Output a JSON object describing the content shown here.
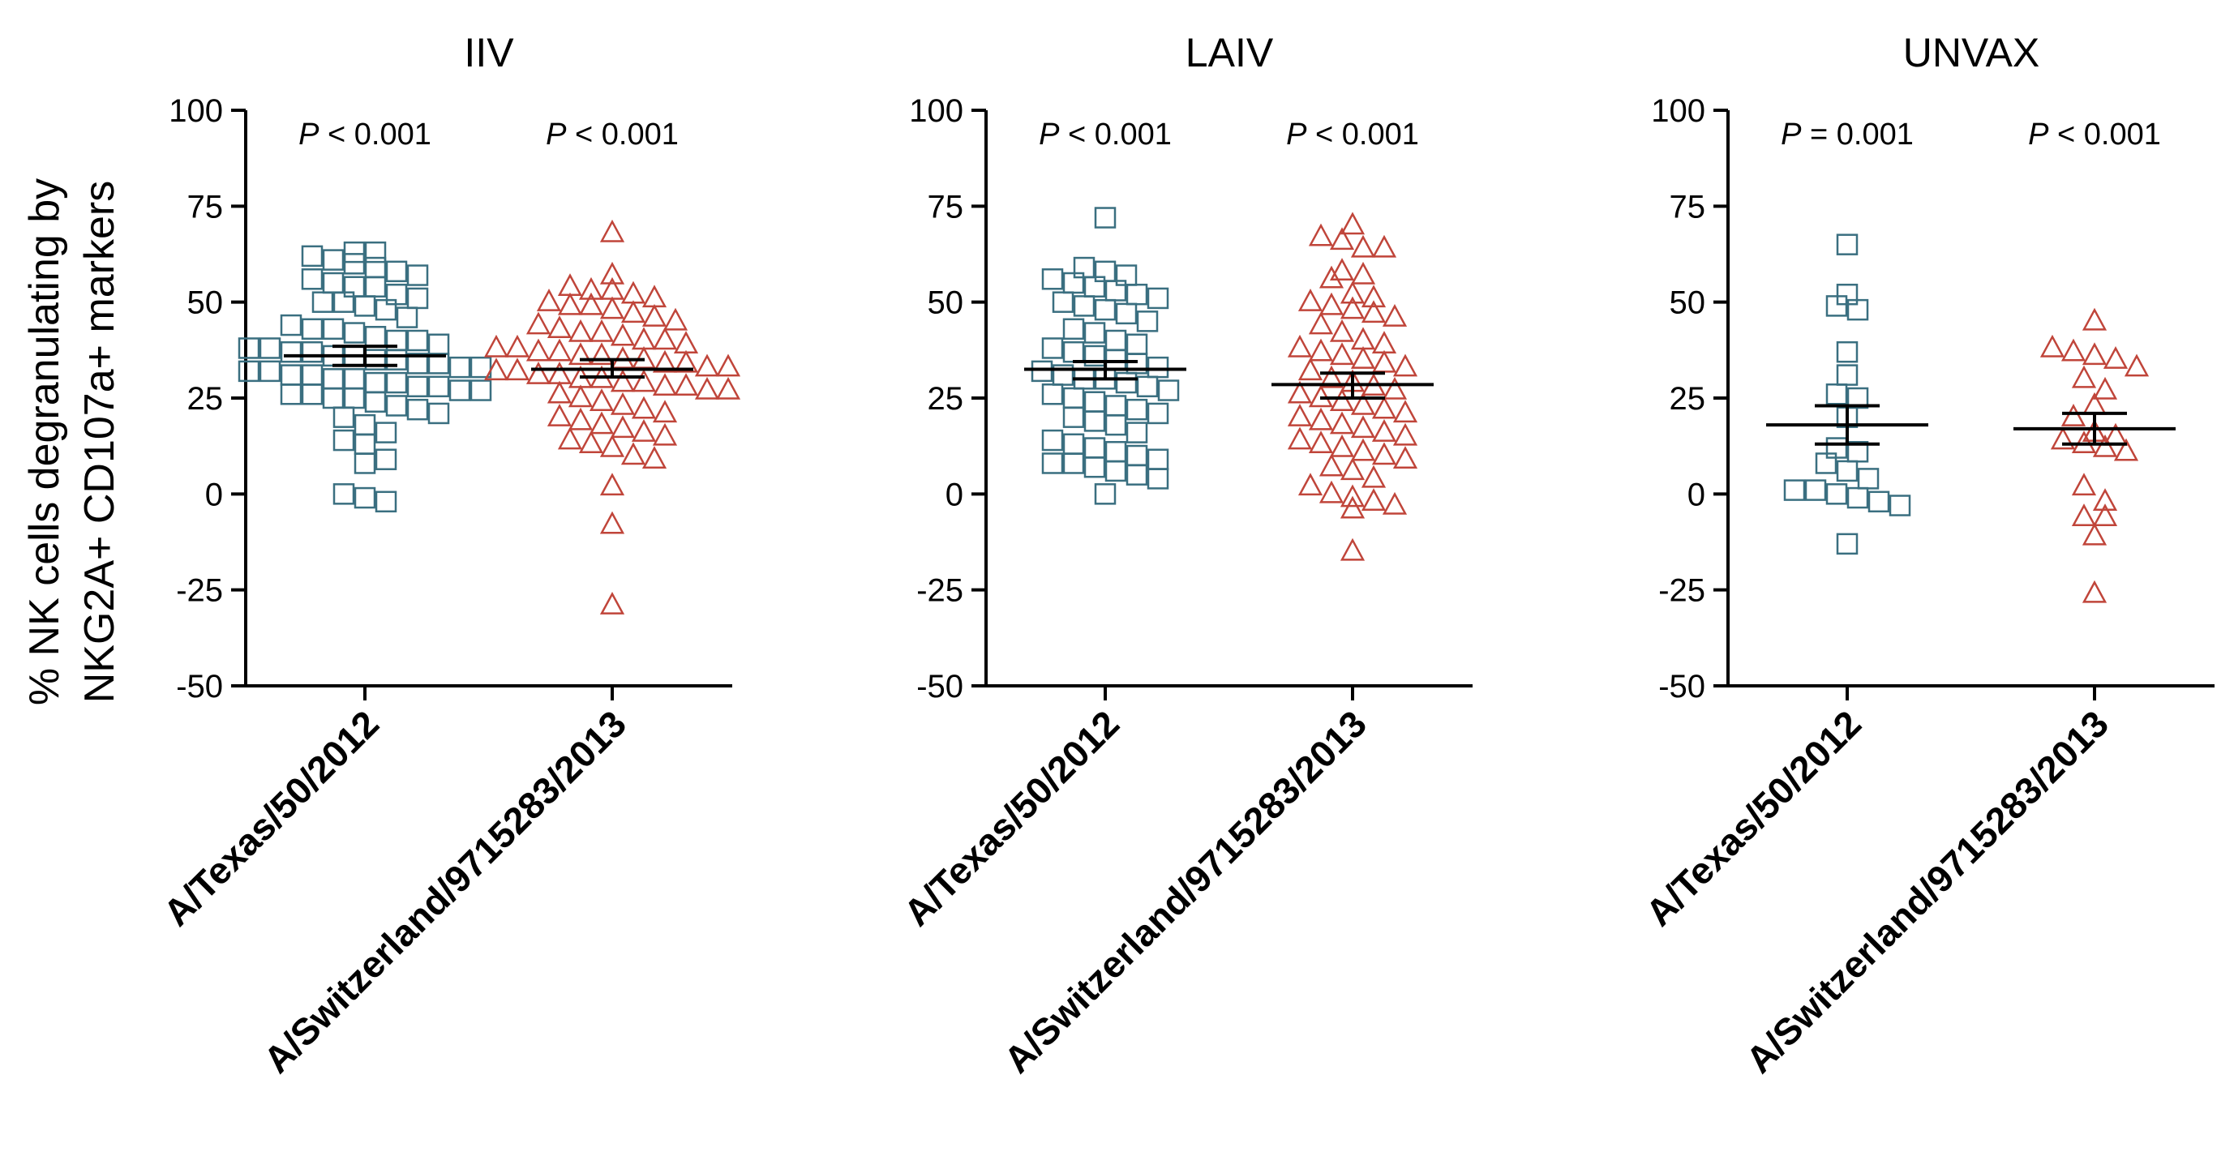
{
  "figure": {
    "ylabel_line1": "% NK cells degranulating by",
    "ylabel_line2": "NKG2A+ CD107a+ markers"
  },
  "colors": {
    "texas": "#3a6f80",
    "switzerland": "#c0453a",
    "axis": "#000000"
  },
  "chart_data": [
    {
      "type": "scatter",
      "title": "IIV",
      "ylim": [
        -50,
        100
      ],
      "yticks": [
        -50,
        -25,
        0,
        25,
        50,
        75,
        100
      ],
      "categories": [
        "A/Texas/50/2012",
        "A/Switzerland/9715283/2013"
      ],
      "pvalues": [
        {
          "p": "P",
          "op": " < ",
          "val": "0.001"
        },
        {
          "p": "P",
          "op": " < ",
          "val": "0.001"
        }
      ],
      "series": [
        {
          "marker": "square",
          "mean": 36,
          "sem_lo": 33.5,
          "sem_hi": 38.5,
          "values": [
            63,
            62,
            63,
            61,
            60,
            59,
            58,
            57,
            56,
            55,
            54,
            54,
            52,
            51,
            50,
            50,
            49,
            48,
            46,
            44,
            43,
            43,
            42,
            41,
            40,
            40,
            39,
            38,
            38,
            37,
            37,
            36,
            36,
            35,
            35,
            34,
            34,
            33,
            33,
            32,
            32,
            31,
            31,
            30,
            30,
            29,
            29,
            28,
            28,
            27,
            27,
            26,
            26,
            25,
            25,
            24,
            23,
            22,
            21,
            20,
            18,
            16,
            14,
            13,
            9,
            8,
            0,
            -1,
            -2
          ]
        },
        {
          "marker": "triangle",
          "mean": 32.5,
          "sem_lo": 30.5,
          "sem_hi": 35,
          "values": [
            68,
            57,
            54,
            53,
            53,
            52,
            51,
            50,
            49,
            49,
            48,
            47,
            46,
            45,
            44,
            43,
            42,
            42,
            41,
            40,
            40,
            39,
            38,
            38,
            37,
            37,
            36,
            36,
            35,
            35,
            34,
            34,
            33,
            33,
            32,
            32,
            31,
            31,
            30,
            30,
            29,
            29,
            28,
            28,
            27,
            27,
            26,
            25,
            24,
            23,
            22,
            21,
            20,
            19,
            18,
            17,
            16,
            15,
            14,
            13,
            12,
            10,
            9,
            2,
            -8,
            -29
          ]
        }
      ]
    },
    {
      "type": "scatter",
      "title": "LAIV",
      "ylim": [
        -50,
        100
      ],
      "yticks": [
        -50,
        -25,
        0,
        25,
        50,
        75,
        100
      ],
      "categories": [
        "A/Texas/50/2012",
        "A/Switzerland/9715283/2013"
      ],
      "pvalues": [
        {
          "p": "P",
          "op": " < ",
          "val": "0.001"
        },
        {
          "p": "P",
          "op": " < ",
          "val": "0.001"
        }
      ],
      "series": [
        {
          "marker": "square",
          "mean": 32.5,
          "sem_lo": 30,
          "sem_hi": 34.5,
          "values": [
            72,
            59,
            58,
            57,
            56,
            55,
            54,
            53,
            52,
            51,
            50,
            49,
            48,
            47,
            45,
            43,
            42,
            40,
            39,
            38,
            37,
            36,
            35,
            34,
            33,
            32,
            31,
            30,
            30,
            29,
            28,
            27,
            26,
            25,
            24,
            23,
            22,
            21,
            20,
            19,
            18,
            16,
            14,
            13,
            12,
            11,
            10,
            9,
            8,
            8,
            7,
            6,
            5,
            4,
            0
          ]
        },
        {
          "marker": "triangle",
          "mean": 28.5,
          "sem_lo": 25,
          "sem_hi": 31.5,
          "values": [
            70,
            67,
            66,
            64,
            64,
            58,
            57,
            56,
            52,
            51,
            50,
            49,
            48,
            47,
            46,
            44,
            42,
            40,
            39,
            38,
            37,
            36,
            35,
            34,
            33,
            32,
            30,
            29,
            28,
            27,
            26,
            25,
            24,
            23,
            22,
            21,
            20,
            19,
            18,
            17,
            16,
            15,
            14,
            13,
            12,
            11,
            10,
            9,
            7,
            6,
            4,
            2,
            0,
            -1,
            -2,
            -3,
            -4,
            -15
          ]
        }
      ]
    },
    {
      "type": "scatter",
      "title": "UNVAX",
      "ylim": [
        -50,
        100
      ],
      "yticks": [
        -50,
        -25,
        0,
        25,
        50,
        75,
        100
      ],
      "categories": [
        "A/Texas/50/2012",
        "A/Switzerland/9715283/2013"
      ],
      "pvalues": [
        {
          "p": "P",
          "op": " = ",
          "val": "0.001"
        },
        {
          "p": "P",
          "op": " < ",
          "val": "0.001"
        }
      ],
      "series": [
        {
          "marker": "square",
          "mean": 18,
          "sem_lo": 13,
          "sem_hi": 23,
          "values": [
            65,
            52,
            49,
            48,
            37,
            31,
            26,
            25,
            20,
            12,
            11,
            8,
            6,
            4,
            1,
            1,
            0,
            -1,
            -2,
            -3,
            -13
          ]
        },
        {
          "marker": "triangle",
          "mean": 17,
          "sem_lo": 13,
          "sem_hi": 21,
          "values": [
            45,
            38,
            37,
            36,
            35,
            33,
            30,
            27,
            23,
            20,
            16,
            15,
            14,
            13,
            12,
            11,
            2,
            -2,
            -6,
            -6,
            -11,
            -26
          ]
        }
      ]
    }
  ]
}
